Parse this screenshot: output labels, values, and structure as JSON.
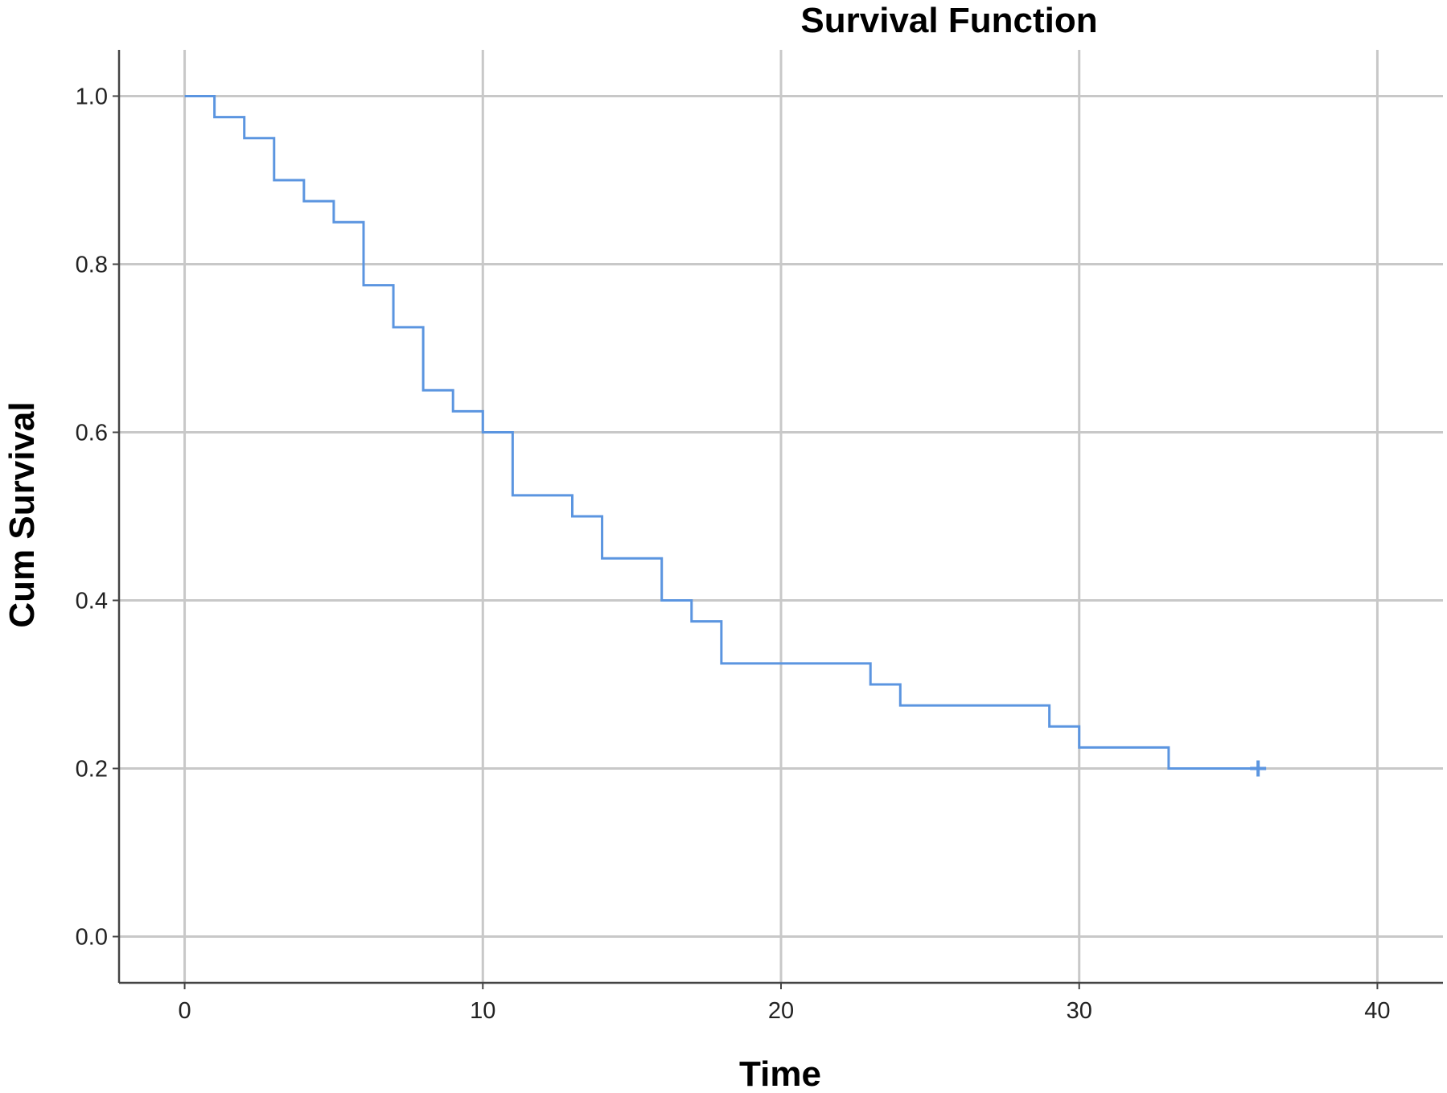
{
  "chart_data": {
    "type": "line",
    "title": "Survival Function",
    "xlabel": "Time",
    "ylabel": "Cum Survival",
    "xlim": [
      -2.2,
      42.2
    ],
    "ylim": [
      -0.055,
      1.055
    ],
    "xticks": [
      0,
      10,
      20,
      30,
      40
    ],
    "yticks": [
      0.0,
      0.2,
      0.4,
      0.6,
      0.8,
      1.0
    ],
    "xtick_labels": [
      "0",
      "10",
      "20",
      "30",
      "40"
    ],
    "ytick_labels": [
      "0.0",
      "0.2",
      "0.4",
      "0.6",
      "0.8",
      "1.0"
    ],
    "grid": true,
    "step": "post",
    "series": [
      {
        "color": "#5b95e0",
        "x": [
          0,
          1,
          2,
          3,
          4,
          5,
          6,
          7,
          8,
          9,
          10,
          11,
          13,
          14,
          16,
          17,
          18,
          23,
          24,
          29,
          30,
          33,
          36
        ],
        "y": [
          1.0,
          0.975,
          0.95,
          0.9,
          0.875,
          0.85,
          0.775,
          0.725,
          0.65,
          0.625,
          0.6,
          0.525,
          0.5,
          0.45,
          0.4,
          0.375,
          0.325,
          0.3,
          0.275,
          0.25,
          0.225,
          0.2,
          0.2
        ],
        "censored": [
          {
            "x": 36,
            "y": 0.2
          }
        ]
      }
    ]
  }
}
